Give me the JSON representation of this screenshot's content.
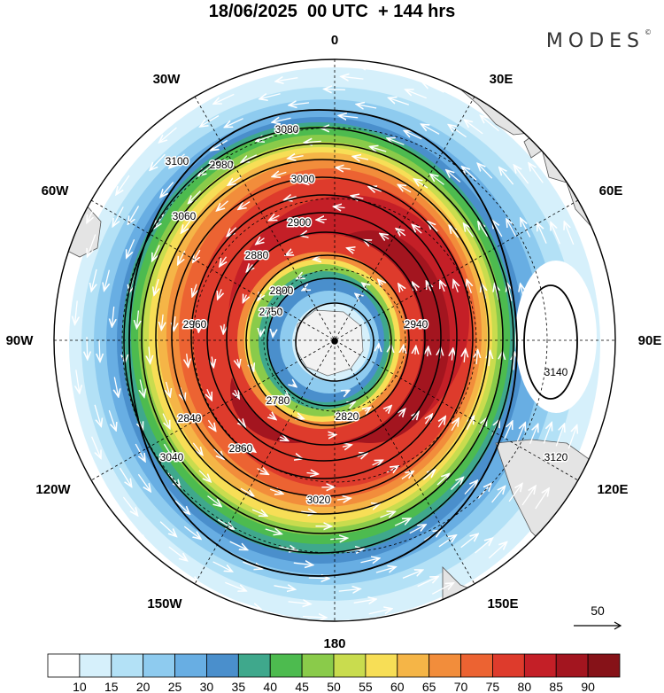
{
  "header": {
    "title": "18/06/2025  00 UTC  + 144 hrs",
    "brand": "MODES",
    "brand_mark": "©"
  },
  "map": {
    "projection": "south-polar-stereographic",
    "longitude_labels": [
      "0",
      "30E",
      "60E",
      "90E",
      "120E",
      "150E",
      "180",
      "150W",
      "120W",
      "90W",
      "60W",
      "30W"
    ],
    "contour_labels": [
      "3080",
      "3100",
      "2980",
      "3060",
      "3000",
      "2900",
      "2880",
      "2800",
      "2750",
      "2780",
      "2820",
      "2840",
      "2860",
      "2940",
      "2960",
      "3040",
      "3020",
      "3120",
      "3140"
    ],
    "vector_reference": "50"
  },
  "colorbar": {
    "values": [
      "10",
      "15",
      "20",
      "25",
      "30",
      "35",
      "40",
      "45",
      "50",
      "55",
      "60",
      "65",
      "70",
      "75",
      "80",
      "85",
      "90"
    ],
    "colors": [
      "#ffffff",
      "#d6f0fb",
      "#b3e1f6",
      "#8ecbef",
      "#68aee3",
      "#4a8fcc",
      "#3fa88c",
      "#4dbb4f",
      "#8acb4a",
      "#c9dc4e",
      "#f7de56",
      "#f5b547",
      "#f28d3b",
      "#ec6332",
      "#de3b2c",
      "#c41f27",
      "#a3151f",
      "#861218"
    ]
  },
  "colors": {
    "land": "#e4e4e4",
    "ice": "#f2f2f2",
    "contour": "#000000",
    "vector": "#ffffff"
  }
}
